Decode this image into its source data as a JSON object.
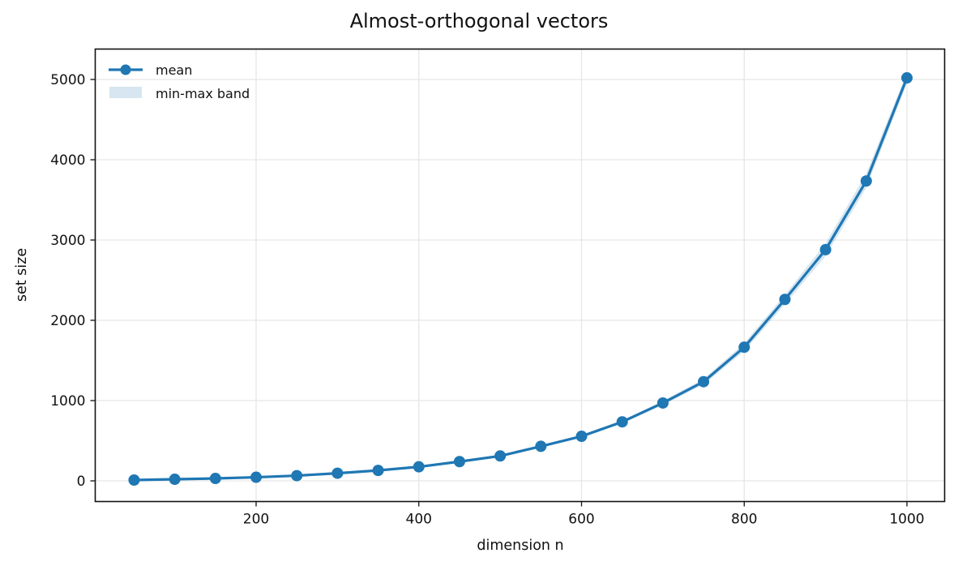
{
  "chart_data": {
    "type": "line",
    "title": "Almost-orthogonal vectors",
    "xlabel": "dimension n",
    "ylabel": "set size",
    "x": [
      50,
      100,
      150,
      200,
      250,
      300,
      350,
      400,
      450,
      500,
      550,
      600,
      650,
      700,
      750,
      800,
      850,
      900,
      950,
      1000
    ],
    "series": [
      {
        "name": "mean",
        "style": "line-with-markers",
        "color": "#1f77b4",
        "values": [
          10,
          20,
          30,
          45,
          65,
          95,
          130,
          175,
          240,
          310,
          430,
          555,
          735,
          970,
          1235,
          1665,
          2260,
          2880,
          3735,
          5020
        ]
      },
      {
        "name": "min-max band",
        "style": "fill-between",
        "color": "#1f77b4",
        "alpha": 0.18,
        "min": [
          8,
          17,
          27,
          42,
          61,
          90,
          125,
          168,
          232,
          300,
          418,
          540,
          715,
          945,
          1200,
          1615,
          2200,
          2800,
          3650,
          4950
        ],
        "max": [
          12,
          23,
          33,
          48,
          69,
          100,
          136,
          182,
          248,
          320,
          442,
          570,
          755,
          995,
          1270,
          1715,
          2320,
          2960,
          3830,
          5090
        ]
      }
    ],
    "xticks": [
      200,
      400,
      600,
      800,
      1000
    ],
    "yticks": [
      0,
      1000,
      2000,
      3000,
      4000,
      5000
    ],
    "xlim": [
      3,
      1047
    ],
    "ylim": [
      -260,
      5400
    ],
    "grid": true,
    "legend_position": "upper left"
  },
  "legend": {
    "items": [
      {
        "label": "mean"
      },
      {
        "label": "min-max band"
      }
    ]
  }
}
